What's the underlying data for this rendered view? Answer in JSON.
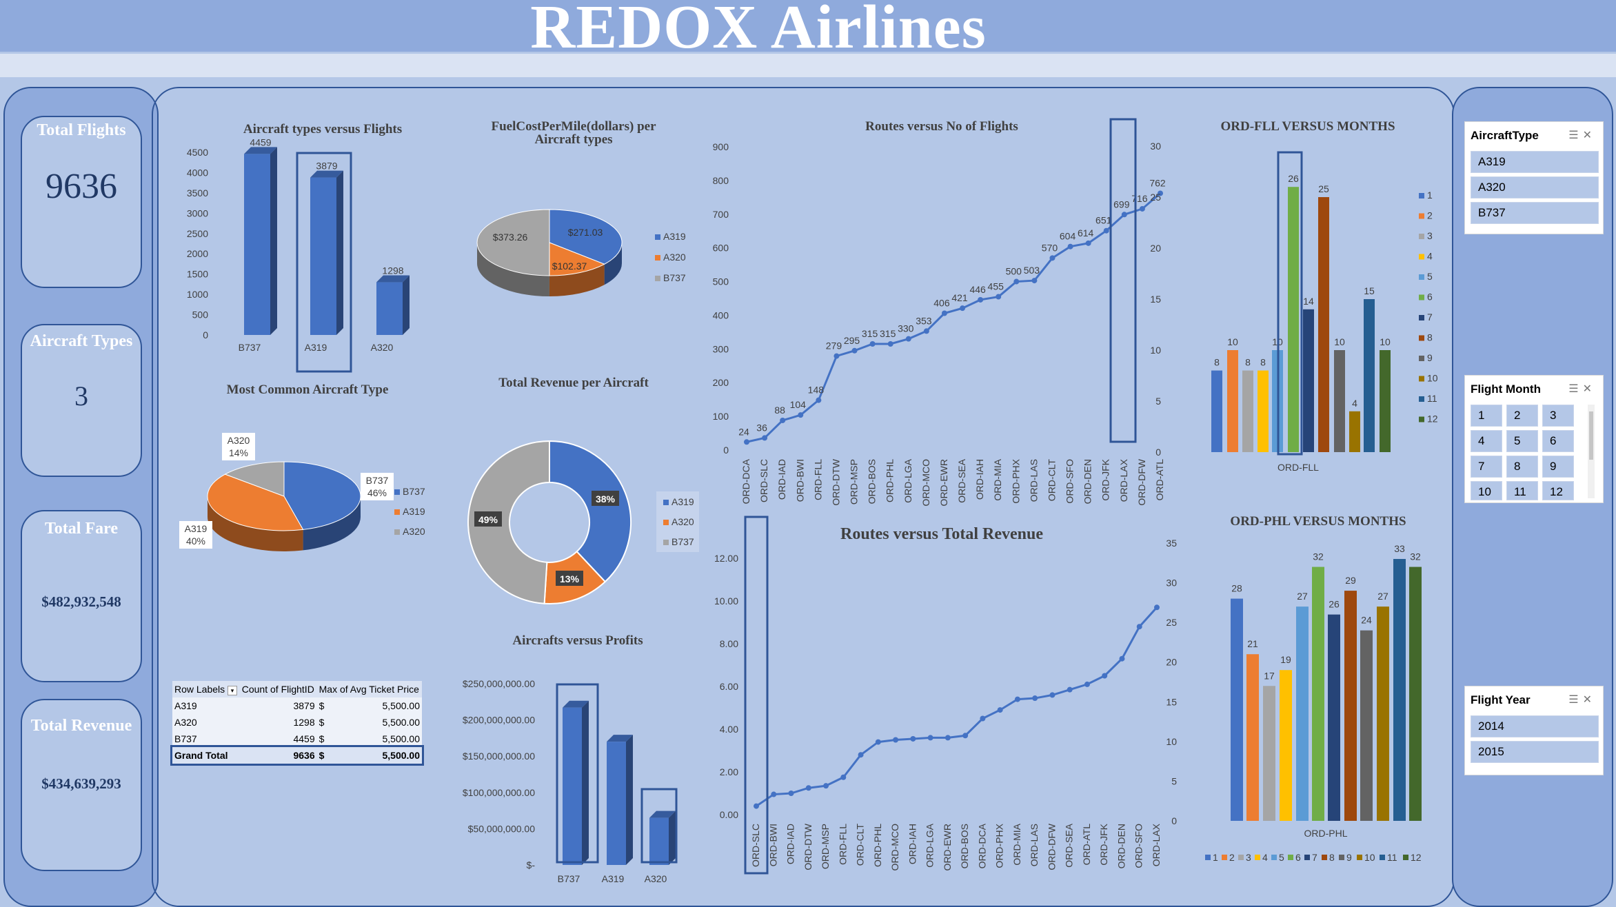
{
  "title": "REDOX Airlines",
  "kpis": {
    "total_flights": {
      "label": "Total Flights",
      "value": "9636"
    },
    "aircraft_types": {
      "label": "Aircraft Types",
      "value": "3"
    },
    "total_fare": {
      "label": "Total Fare",
      "value": "$482,932,548"
    },
    "total_revenue": {
      "label": "Total Revenue",
      "value": "$434,639,293"
    }
  },
  "pivot": {
    "headers": [
      "Row Labels",
      "Count of FlightID",
      "Max of Avg Ticket Price"
    ],
    "rows": [
      {
        "label": "A319",
        "count": "3879",
        "cur": "$",
        "price": "5,500.00"
      },
      {
        "label": "A320",
        "count": "1298",
        "cur": "$",
        "price": "5,500.00"
      },
      {
        "label": "B737",
        "count": "4459",
        "cur": "$",
        "price": "5,500.00"
      }
    ],
    "total": {
      "label": "Grand Total",
      "count": "9636",
      "cur": "$",
      "price": "5,500.00"
    }
  },
  "slicers": {
    "aircraft_type": {
      "title": "AircraftType",
      "items": [
        "A319",
        "A320",
        "B737"
      ]
    },
    "flight_month": {
      "title": "Flight Month",
      "items": [
        "1",
        "2",
        "3",
        "4",
        "5",
        "6",
        "7",
        "8",
        "9",
        "10",
        "11",
        "12"
      ]
    },
    "flight_year": {
      "title": "Flight Year",
      "items": [
        "2014",
        "2015"
      ]
    }
  },
  "colors": {
    "blue": "#4472c4",
    "orange": "#ed7d31",
    "gray": "#a5a5a5",
    "gold": "#ffc000",
    "lightblue": "#5b9bd5",
    "green": "#70ad47",
    "navy": "#264478",
    "brown": "#9e480e",
    "darkgray": "#636363",
    "olive": "#997300",
    "steel": "#255e91",
    "darkgreen": "#43682b",
    "frame": "#2f5597"
  },
  "chart_data": [
    {
      "id": "aircraft_flights",
      "type": "bar",
      "title": "Aircraft types versus Flights",
      "categories": [
        "B737",
        "A319",
        "A320"
      ],
      "values": [
        4459,
        3879,
        1298
      ],
      "yticks": [
        "0",
        "500",
        "1000",
        "1500",
        "2000",
        "2500",
        "3000",
        "3500",
        "4000",
        "4500"
      ],
      "ylim": [
        0,
        4500
      ],
      "highlight": "A319"
    },
    {
      "id": "fuel_cost",
      "type": "pie",
      "title": "FuelCostPerMile(dollars) per Aircraft types",
      "labels": [
        "A319",
        "A320",
        "B737"
      ],
      "values": [
        271.03,
        102.37,
        373.26
      ],
      "data_labels": [
        "$271.03",
        "$102.37",
        "$373.26"
      ]
    },
    {
      "id": "common_aircraft",
      "type": "pie",
      "title": "Most Common Aircraft Type",
      "labels": [
        "B737",
        "A319",
        "A320"
      ],
      "values": [
        46,
        40,
        14
      ],
      "data_labels": [
        "B737\n46%",
        "A319\n40%",
        "A320\n14%"
      ]
    },
    {
      "id": "revenue_aircraft",
      "type": "pie",
      "title": "Total Revenue per Aircraft",
      "labels": [
        "A319",
        "A320",
        "B737"
      ],
      "values": [
        38,
        13,
        49
      ],
      "data_labels": [
        "38%",
        "13%",
        "49%"
      ]
    },
    {
      "id": "profits",
      "type": "bar",
      "title": "Aircrafts versus Profits",
      "categories": [
        "B737",
        "A319",
        "A320"
      ],
      "values": [
        217000000,
        170000000,
        65000000
      ],
      "yticks": [
        "$-",
        "$50,000,000.00",
        "$100,000,000.00",
        "$150,000,000.00",
        "$200,000,000.00",
        "$250,000,000.00"
      ],
      "ylim": [
        0,
        250000000
      ]
    },
    {
      "id": "routes_flights",
      "type": "line",
      "title": "Routes versus No of Flights",
      "categories": [
        "ORD-DCA",
        "ORD-SLC",
        "ORD-IAD",
        "ORD-BWI",
        "ORD-FLL",
        "ORD-DTW",
        "ORD-MSP",
        "ORD-BOS",
        "ORD-PHL",
        "ORD-LGA",
        "ORD-MCO",
        "ORD-EWR",
        "ORD-SEA",
        "ORD-IAH",
        "ORD-MIA",
        "ORD-PHX",
        "ORD-LAS",
        "ORD-CLT",
        "ORD-SFO",
        "ORD-DEN",
        "ORD-JFK",
        "ORD-LAX",
        "ORD-DFW",
        "ORD-ATL"
      ],
      "values": [
        24,
        36,
        88,
        104,
        148,
        279,
        295,
        315,
        315,
        330,
        353,
        406,
        421,
        446,
        455,
        500,
        503,
        570,
        604,
        614,
        651,
        699,
        716,
        762
      ],
      "labels": [
        "24",
        "36",
        "88",
        "104",
        "148",
        "279",
        "295",
        "315",
        "315",
        "330",
        "353",
        "406",
        "421",
        "446",
        "455",
        "500",
        "503",
        "570",
        "604",
        "614",
        "651",
        "699",
        "716",
        "762"
      ],
      "yticks": [
        "0",
        "100",
        "200",
        "300",
        "400",
        "500",
        "600",
        "700",
        "800",
        "900"
      ],
      "ylim": [
        0,
        900
      ]
    },
    {
      "id": "routes_revenue",
      "type": "line",
      "title": "Routes versus Total Revenue",
      "categories": [
        "ORD-SLC",
        "ORD-BWI",
        "ORD-IAD",
        "ORD-DTW",
        "ORD-MSP",
        "ORD-FLL",
        "ORD-CLT",
        "ORD-PHL",
        "ORD-MCO",
        "ORD-IAH",
        "ORD-LGA",
        "ORD-EWR",
        "ORD-BOS",
        "ORD-DCA",
        "ORD-PHX",
        "ORD-MIA",
        "ORD-LAS",
        "ORD-DFW",
        "ORD-SEA",
        "ORD-ATL",
        "ORD-JFK",
        "ORD-DEN",
        "ORD-SFO",
        "ORD-LAX"
      ],
      "values": [
        0.4,
        0.95,
        1.0,
        1.25,
        1.35,
        1.75,
        2.8,
        3.4,
        3.5,
        3.55,
        3.6,
        3.6,
        3.7,
        4.5,
        4.9,
        5.4,
        5.45,
        5.6,
        5.85,
        6.1,
        6.5,
        7.3,
        8.8,
        9.7
      ],
      "yticks": [
        "0.00",
        "2.00",
        "4.00",
        "6.00",
        "8.00",
        "10.00",
        "12.00"
      ],
      "ylim": [
        0,
        12
      ]
    },
    {
      "id": "ord_fll",
      "type": "bar",
      "title": "ORD-FLL VERSUS MONTHS",
      "xlabel": "ORD-FLL",
      "series_names": [
        "1",
        "2",
        "3",
        "4",
        "5",
        "6",
        "7",
        "8",
        "9",
        "10",
        "11",
        "12"
      ],
      "values": [
        8,
        10,
        8,
        8,
        10,
        26,
        14,
        25,
        10,
        4,
        15,
        10
      ],
      "yticks": [
        "0",
        "5",
        "10",
        "15",
        "20",
        "25",
        "30"
      ],
      "ylim": [
        0,
        30
      ]
    },
    {
      "id": "ord_phl",
      "type": "bar",
      "title": "ORD-PHL VERSUS MONTHS",
      "xlabel": "ORD-PHL",
      "series_names": [
        "1",
        "2",
        "3",
        "4",
        "5",
        "6",
        "7",
        "8",
        "9",
        "10",
        "11",
        "12"
      ],
      "values": [
        28,
        21,
        17,
        19,
        27,
        32,
        26,
        29,
        24,
        27,
        33,
        32
      ],
      "yticks": [
        "0",
        "5",
        "10",
        "15",
        "20",
        "25",
        "30",
        "35"
      ],
      "ylim": [
        0,
        35
      ]
    }
  ]
}
